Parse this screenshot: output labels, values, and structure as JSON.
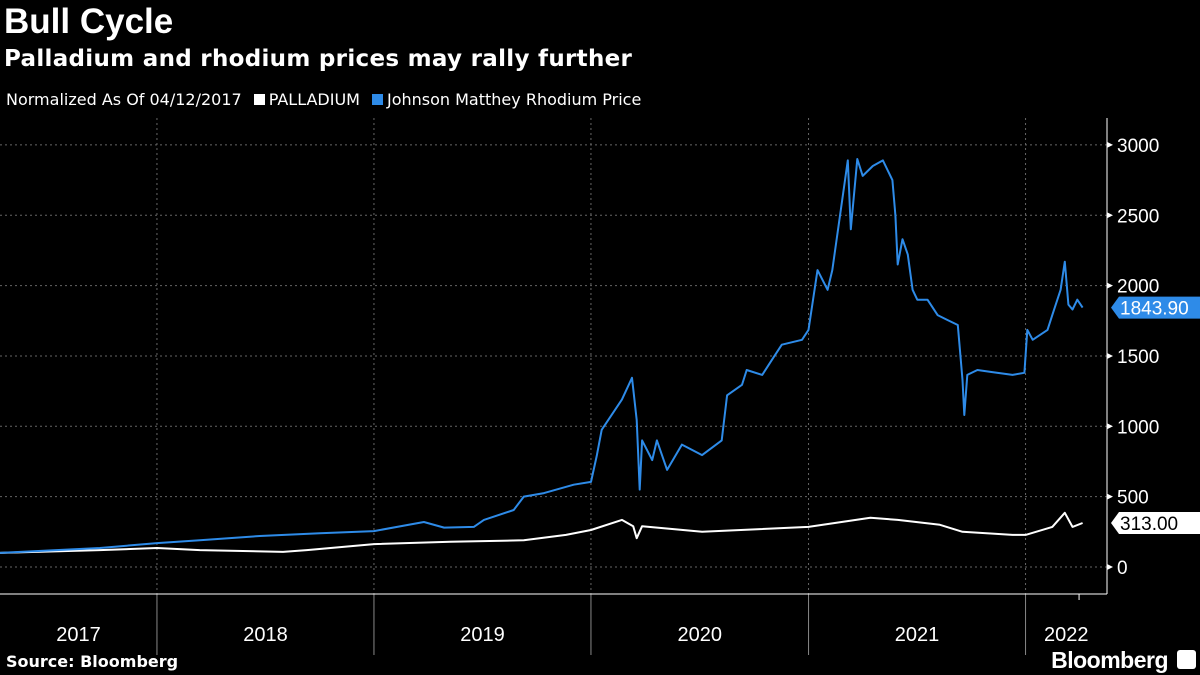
{
  "chart_data": {
    "type": "line",
    "title": "Bull Cycle",
    "subtitle": "Palladium and rhodium prices may rally further",
    "legend_note": "Normalized As Of 04/12/2017",
    "legend_placement": "top-left",
    "source": "Source: Bloomberg",
    "logo": "Bloomberg",
    "xlim": [
      "2017-04-12",
      "2022-05-18"
    ],
    "ylim": [
      -100,
      3100
    ],
    "y_ticks": [
      0,
      500,
      1000,
      1500,
      2000,
      2500,
      3000
    ],
    "x_tick_labels": [
      "2017",
      "2018",
      "2019",
      "2020",
      "2021",
      "2022"
    ],
    "grid": true,
    "y_axis_side": "right",
    "series": [
      {
        "name": "PALLADIUM",
        "color": "#ffffff",
        "last_value_label": "313.00",
        "points": [
          [
            "2017-04-12",
            100
          ],
          [
            "2017-09-27",
            120
          ],
          [
            "2018-01-01",
            135
          ],
          [
            "2018-03-14",
            120
          ],
          [
            "2018-08-01",
            107
          ],
          [
            "2018-09-10",
            120
          ],
          [
            "2019-01-01",
            163
          ],
          [
            "2019-05-10",
            180
          ],
          [
            "2019-09-10",
            190
          ],
          [
            "2019-11-20",
            228
          ],
          [
            "2020-01-01",
            263
          ],
          [
            "2020-02-22",
            335
          ],
          [
            "2020-03-12",
            290
          ],
          [
            "2020-03-18",
            205
          ],
          [
            "2020-03-27",
            290
          ],
          [
            "2020-07-06",
            250
          ],
          [
            "2021-01-01",
            285
          ],
          [
            "2021-04-15",
            350
          ],
          [
            "2021-05-31",
            335
          ],
          [
            "2021-08-10",
            300
          ],
          [
            "2021-09-17",
            250
          ],
          [
            "2021-12-10",
            228
          ],
          [
            "2022-01-01",
            228
          ],
          [
            "2022-02-15",
            285
          ],
          [
            "2022-03-08",
            385
          ],
          [
            "2022-03-21",
            285
          ],
          [
            "2022-04-07",
            313
          ]
        ]
      },
      {
        "name": "Johnson Matthey Rhodium Price",
        "color": "#2e8be8",
        "last_value_label": "1843.90",
        "points": [
          [
            "2017-04-12",
            100
          ],
          [
            "2017-09-27",
            135
          ],
          [
            "2018-01-01",
            170
          ],
          [
            "2018-03-14",
            190
          ],
          [
            "2018-06-23",
            220
          ],
          [
            "2018-10-02",
            240
          ],
          [
            "2019-01-01",
            255
          ],
          [
            "2019-03-26",
            320
          ],
          [
            "2019-04-29",
            280
          ],
          [
            "2019-06-18",
            285
          ],
          [
            "2019-07-05",
            335
          ],
          [
            "2019-08-24",
            405
          ],
          [
            "2019-09-10",
            500
          ],
          [
            "2019-10-14",
            525
          ],
          [
            "2019-12-03",
            585
          ],
          [
            "2020-01-01",
            605
          ],
          [
            "2020-01-11",
            795
          ],
          [
            "2020-01-19",
            975
          ],
          [
            "2020-02-22",
            1190
          ],
          [
            "2020-03-10",
            1345
          ],
          [
            "2020-03-18",
            1045
          ],
          [
            "2020-03-23",
            550
          ],
          [
            "2020-03-27",
            900
          ],
          [
            "2020-04-13",
            760
          ],
          [
            "2020-04-21",
            900
          ],
          [
            "2020-05-08",
            690
          ],
          [
            "2020-06-02",
            870
          ],
          [
            "2020-07-06",
            795
          ],
          [
            "2020-08-08",
            900
          ],
          [
            "2020-08-17",
            1220
          ],
          [
            "2020-09-11",
            1295
          ],
          [
            "2020-09-19",
            1400
          ],
          [
            "2020-10-15",
            1365
          ],
          [
            "2020-10-31",
            1470
          ],
          [
            "2020-11-17",
            1580
          ],
          [
            "2020-12-21",
            1615
          ],
          [
            "2021-01-01",
            1685
          ],
          [
            "2021-01-16",
            2110
          ],
          [
            "2021-02-02",
            1970
          ],
          [
            "2021-02-10",
            2110
          ],
          [
            "2021-03-08",
            2890
          ],
          [
            "2021-03-13",
            2400
          ],
          [
            "2021-03-24",
            2900
          ],
          [
            "2021-04-02",
            2780
          ],
          [
            "2021-04-19",
            2850
          ],
          [
            "2021-05-06",
            2890
          ],
          [
            "2021-05-22",
            2750
          ],
          [
            "2021-05-27",
            2500
          ],
          [
            "2021-05-31",
            2150
          ],
          [
            "2021-06-08",
            2330
          ],
          [
            "2021-06-17",
            2220
          ],
          [
            "2021-06-25",
            1970
          ],
          [
            "2021-07-03",
            1900
          ],
          [
            "2021-07-20",
            1900
          ],
          [
            "2021-08-06",
            1790
          ],
          [
            "2021-08-23",
            1755
          ],
          [
            "2021-09-09",
            1720
          ],
          [
            "2021-09-17",
            1330
          ],
          [
            "2021-09-20",
            1080
          ],
          [
            "2021-09-25",
            1365
          ],
          [
            "2021-10-12",
            1400
          ],
          [
            "2021-11-06",
            1385
          ],
          [
            "2021-12-10",
            1365
          ],
          [
            "2021-12-30",
            1380
          ],
          [
            "2022-01-04",
            1685
          ],
          [
            "2022-01-13",
            1615
          ],
          [
            "2022-02-07",
            1685
          ],
          [
            "2022-02-15",
            1790
          ],
          [
            "2022-03-01",
            1970
          ],
          [
            "2022-03-08",
            2170
          ],
          [
            "2022-03-14",
            1865
          ],
          [
            "2022-03-21",
            1830
          ],
          [
            "2022-03-29",
            1900
          ],
          [
            "2022-04-07",
            1843.9
          ]
        ]
      }
    ]
  }
}
